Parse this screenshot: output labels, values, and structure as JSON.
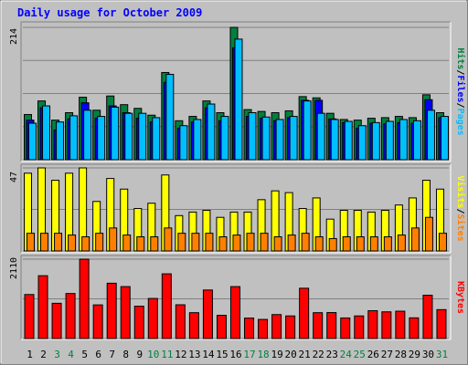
{
  "chart_data": {
    "type": "bar",
    "title": "Daily usage for October 2009",
    "categories": [
      "1",
      "2",
      "3",
      "4",
      "5",
      "6",
      "7",
      "8",
      "9",
      "10",
      "11",
      "12",
      "13",
      "14",
      "15",
      "16",
      "17",
      "18",
      "19",
      "20",
      "21",
      "22",
      "23",
      "24",
      "25",
      "26",
      "27",
      "28",
      "29",
      "30",
      "31"
    ],
    "weekend_days": [
      "3",
      "4",
      "10",
      "11",
      "17",
      "18",
      "24",
      "25",
      "31"
    ],
    "panels": [
      {
        "ymax_label": "214",
        "ymax": 214,
        "side_label": [
          "Pages",
          "/",
          "Files",
          "/",
          "Hits"
        ],
        "series": [
          {
            "name": "Hits",
            "color": "#008040",
            "values": [
              73,
              95,
              64,
              76,
              101,
              80,
              103,
              89,
              83,
              72,
              141,
              63,
              70,
              95,
              76,
              214,
              81,
              78,
              76,
              79,
              102,
              100,
              75,
              65,
              64,
              67,
              68,
              70,
              68,
              105,
              76
            ]
          },
          {
            "name": "Files",
            "color": "#0000ff",
            "values": [
              64,
              84,
              48,
              66,
              92,
              67,
              87,
              76,
              67,
              61,
              125,
              51,
              61,
              84,
              63,
              181,
              70,
              67,
              63,
              68,
              96,
              96,
              66,
              60,
              51,
              59,
              58,
              60,
              59,
              97,
              68
            ]
          },
          {
            "name": "Pages",
            "color": "#00bfff",
            "values": [
              59,
              87,
              61,
              71,
              80,
              70,
              85,
              75,
              75,
              68,
              138,
              55,
              65,
              90,
              70,
              195,
              76,
              69,
              65,
              70,
              95,
              75,
              65,
              62,
              55,
              60,
              62,
              65,
              63,
              80,
              70
            ]
          }
        ]
      },
      {
        "ymax_label": "47",
        "ymax": 47,
        "side_label": [
          "Sites",
          "/",
          "Visits"
        ],
        "series": [
          {
            "name": "Visits",
            "color": "#ffff00",
            "values": [
              44,
              47,
              40,
              44,
              47,
              28,
              41,
              35,
              24,
              27,
              43,
              20,
              22,
              23,
              19,
              22,
              22,
              29,
              34,
              33,
              24,
              30,
              18,
              23,
              23,
              22,
              23,
              26,
              30,
              40,
              35
            ]
          },
          {
            "name": "Sites",
            "color": "#ff8000",
            "values": [
              10,
              10,
              10,
              9,
              8,
              10,
              13,
              9,
              8,
              8,
              13,
              10,
              10,
              10,
              8,
              9,
              10,
              10,
              8,
              9,
              10,
              8,
              7,
              8,
              8,
              8,
              8,
              9,
              13,
              19,
              10
            ]
          }
        ]
      },
      {
        "ymax_label": "2110",
        "ymax": 2110,
        "side_label": [
          "KBytes"
        ],
        "series": [
          {
            "name": "KBytes",
            "color": "#ff0000",
            "values": [
              1170,
              1670,
              937,
              1197,
              2110,
              894,
              1470,
              1380,
              860,
              1065,
              1720,
              897,
              687,
              1290,
              618,
              1380,
              544,
              508,
              637,
              601,
              1337,
              687,
              690,
              547,
              601,
              740,
              710,
              727,
              550,
              1151,
              768
            ]
          }
        ]
      }
    ],
    "grid": true
  }
}
